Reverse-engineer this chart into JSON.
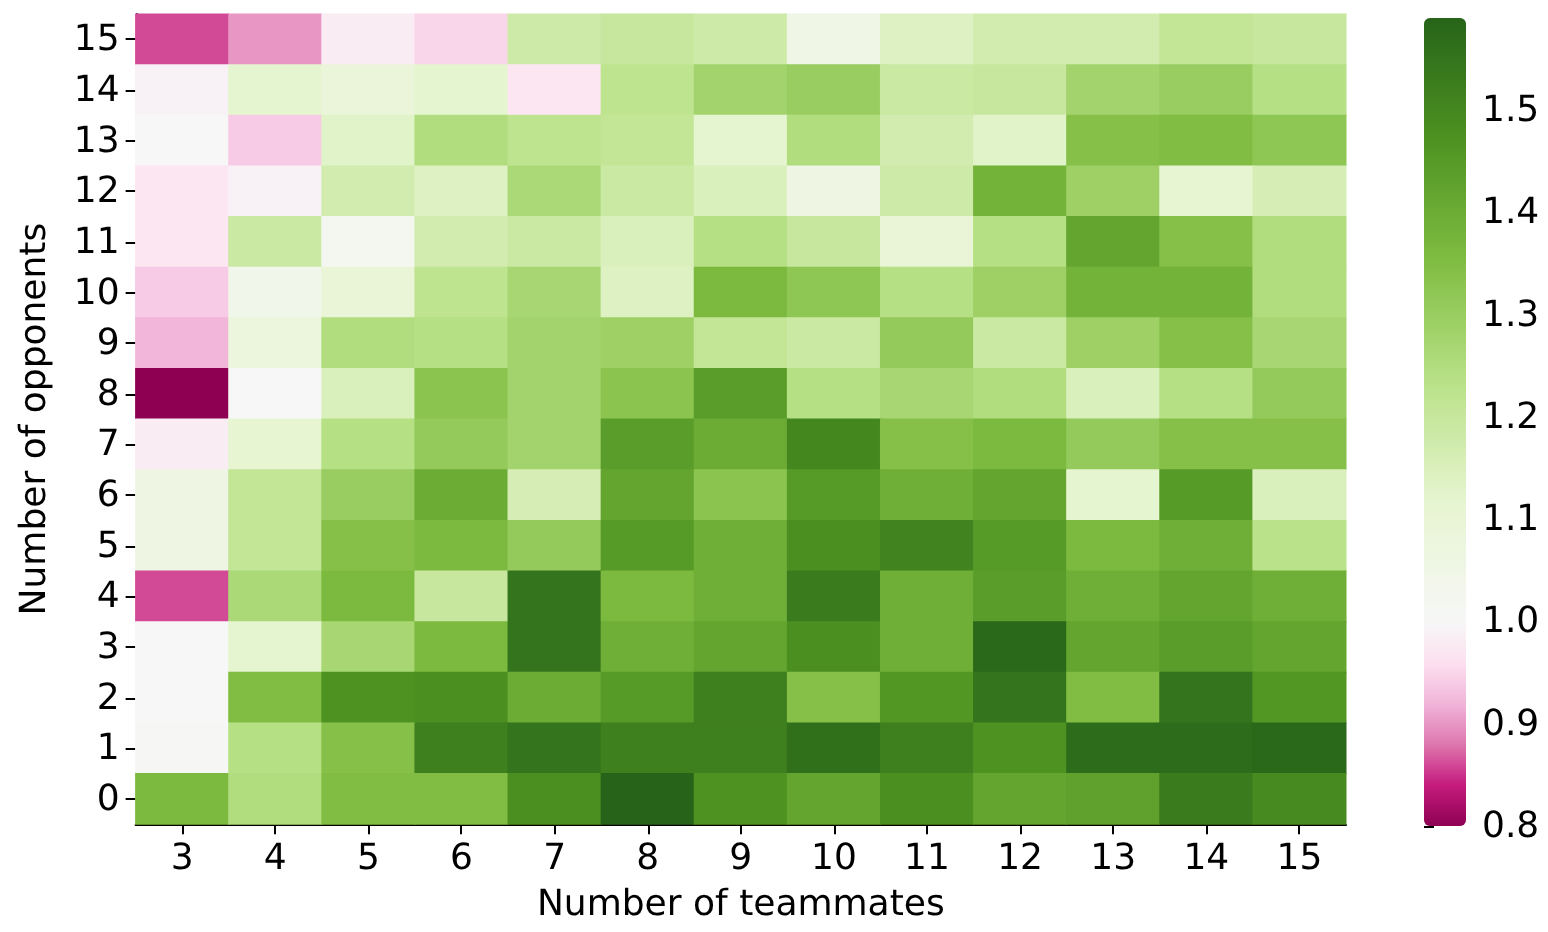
{
  "chart_data": {
    "type": "heatmap",
    "xlabel": "Number of teammates",
    "ylabel": "Number of opponents",
    "categories": [
      "3",
      "4",
      "5",
      "6",
      "7",
      "8",
      "9",
      "10",
      "11",
      "12",
      "13",
      "14",
      "15"
    ],
    "y_categories": [
      "15",
      "14",
      "13",
      "12",
      "11",
      "10",
      "9",
      "8",
      "7",
      "6",
      "5",
      "4",
      "3",
      "2",
      "1",
      "0"
    ],
    "cells": [
      [
        0.86,
        0.9,
        0.98,
        0.95,
        1.18,
        1.2,
        1.18,
        1.05,
        1.14,
        1.17,
        1.17,
        1.21,
        1.2
      ],
      [
        0.99,
        1.12,
        1.09,
        1.12,
        0.97,
        1.22,
        1.28,
        1.3,
        1.19,
        1.2,
        1.28,
        1.3,
        1.24
      ],
      [
        1.0,
        0.94,
        1.13,
        1.25,
        1.22,
        1.21,
        1.12,
        1.25,
        1.17,
        1.13,
        1.34,
        1.35,
        1.32
      ],
      [
        0.97,
        0.99,
        1.17,
        1.14,
        1.26,
        1.19,
        1.15,
        1.06,
        1.18,
        1.38,
        1.29,
        1.11,
        1.16
      ],
      [
        0.97,
        1.19,
        1.02,
        1.17,
        1.19,
        1.15,
        1.24,
        1.2,
        1.1,
        1.24,
        1.42,
        1.34,
        1.25
      ],
      [
        0.94,
        1.04,
        1.1,
        1.22,
        1.27,
        1.14,
        1.36,
        1.32,
        1.24,
        1.29,
        1.38,
        1.38,
        1.25
      ],
      [
        0.92,
        1.08,
        1.25,
        1.24,
        1.28,
        1.29,
        1.21,
        1.19,
        1.31,
        1.19,
        1.29,
        1.34,
        1.27
      ],
      [
        0.8,
        1.0,
        1.15,
        1.33,
        1.28,
        1.33,
        1.44,
        1.24,
        1.27,
        1.25,
        1.15,
        1.24,
        1.31
      ],
      [
        0.98,
        1.11,
        1.24,
        1.31,
        1.28,
        1.44,
        1.4,
        1.5,
        1.34,
        1.36,
        1.31,
        1.34,
        1.34
      ],
      [
        1.06,
        1.21,
        1.3,
        1.4,
        1.16,
        1.42,
        1.33,
        1.45,
        1.39,
        1.42,
        1.12,
        1.45,
        1.15
      ],
      [
        1.06,
        1.21,
        1.34,
        1.36,
        1.31,
        1.45,
        1.39,
        1.48,
        1.51,
        1.45,
        1.36,
        1.39,
        1.23
      ],
      [
        0.86,
        1.26,
        1.36,
        1.2,
        1.55,
        1.36,
        1.39,
        1.53,
        1.39,
        1.44,
        1.39,
        1.42,
        1.39
      ],
      [
        1.0,
        1.12,
        1.27,
        1.36,
        1.55,
        1.39,
        1.42,
        1.48,
        1.39,
        1.58,
        1.42,
        1.44,
        1.42
      ],
      [
        1.0,
        1.35,
        1.47,
        1.48,
        1.4,
        1.45,
        1.52,
        1.34,
        1.46,
        1.55,
        1.35,
        1.55,
        1.46
      ],
      [
        1.01,
        1.24,
        1.34,
        1.52,
        1.55,
        1.52,
        1.52,
        1.56,
        1.52,
        1.47,
        1.57,
        1.57,
        1.58
      ],
      [
        1.36,
        1.25,
        1.35,
        1.35,
        1.48,
        1.59,
        1.47,
        1.42,
        1.48,
        1.42,
        1.43,
        1.53,
        1.49
      ]
    ],
    "clim": [
      0.8,
      1.59
    ],
    "cticks": [
      0.8,
      0.9,
      {
        "value": 1,
        "label": "1.0"
      },
      1.1,
      1.2,
      1.3,
      1.4,
      1.5
    ]
  }
}
